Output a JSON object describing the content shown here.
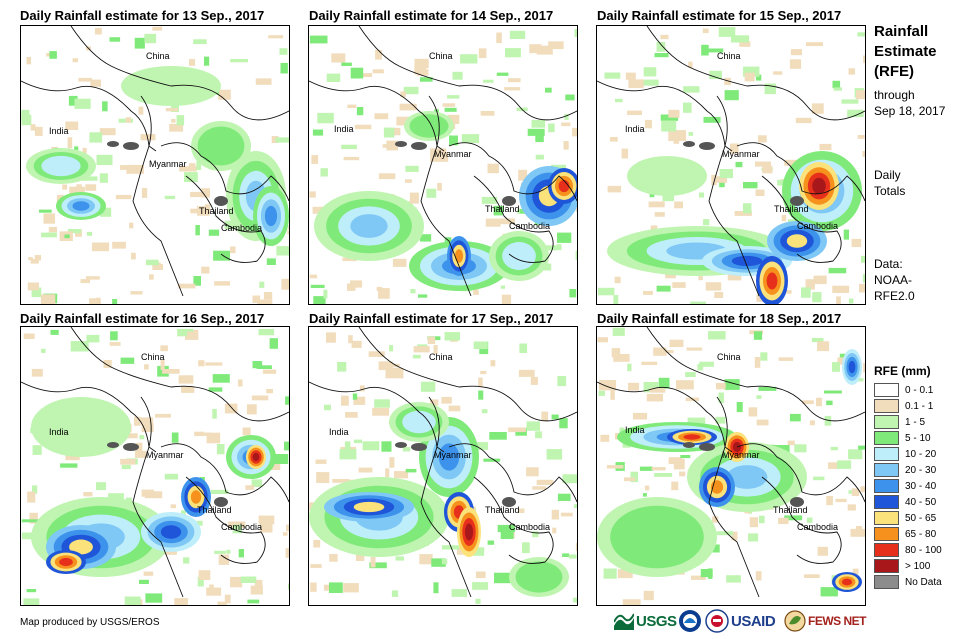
{
  "panels": [
    {
      "title": "Daily Rainfall estimate for 13 Sep., 2017"
    },
    {
      "title": "Daily Rainfall estimate for 14 Sep., 2017"
    },
    {
      "title": "Daily Rainfall estimate for 15 Sep., 2017"
    },
    {
      "title": "Daily Rainfall estimate for 16 Sep., 2017"
    },
    {
      "title": "Daily Rainfall estimate for 17 Sep., 2017"
    },
    {
      "title": "Daily Rainfall estimate for 18 Sep., 2017"
    }
  ],
  "countries": {
    "china": "China",
    "india": "India",
    "myanmar": "Myanmar",
    "thailand": "Thailand",
    "cambodia": "Cambodia"
  },
  "sidebar": {
    "title_line1": "Rainfall",
    "title_line2": "Estimate",
    "title_line3": "(RFE)",
    "through": "through",
    "date": "Sep 18, 2017",
    "daily1": "Daily",
    "daily2": "Totals",
    "data1": "Data:",
    "data2": "NOAA-",
    "data3": "RFE2.0"
  },
  "legend": {
    "title": "RFE (mm)",
    "items": [
      {
        "label": "0 - 0.1",
        "color": "#ffffff"
      },
      {
        "label": "0.1 - 1",
        "color": "#f1dcbb"
      },
      {
        "label": "1 - 5",
        "color": "#bff5b0"
      },
      {
        "label": "5 - 10",
        "color": "#7fea7a"
      },
      {
        "label": "10 - 20",
        "color": "#bfeefb"
      },
      {
        "label": "20 - 30",
        "color": "#7fc8f5"
      },
      {
        "label": "30 - 40",
        "color": "#3d93ec"
      },
      {
        "label": "40 - 50",
        "color": "#1f55d8"
      },
      {
        "label": "50 - 65",
        "color": "#fbe27a"
      },
      {
        "label": "65 - 80",
        "color": "#f5911c"
      },
      {
        "label": "80 - 100",
        "color": "#e7301b"
      },
      {
        "label": "> 100",
        "color": "#a8171a"
      },
      {
        "label": "No Data",
        "color": "#8c8c8c"
      }
    ]
  },
  "footer": {
    "credit": "Map produced by USGS/EROS"
  },
  "logos": {
    "usgs": "USGS",
    "usaid": "USAID",
    "fewsnet": "FEWS NET"
  }
}
